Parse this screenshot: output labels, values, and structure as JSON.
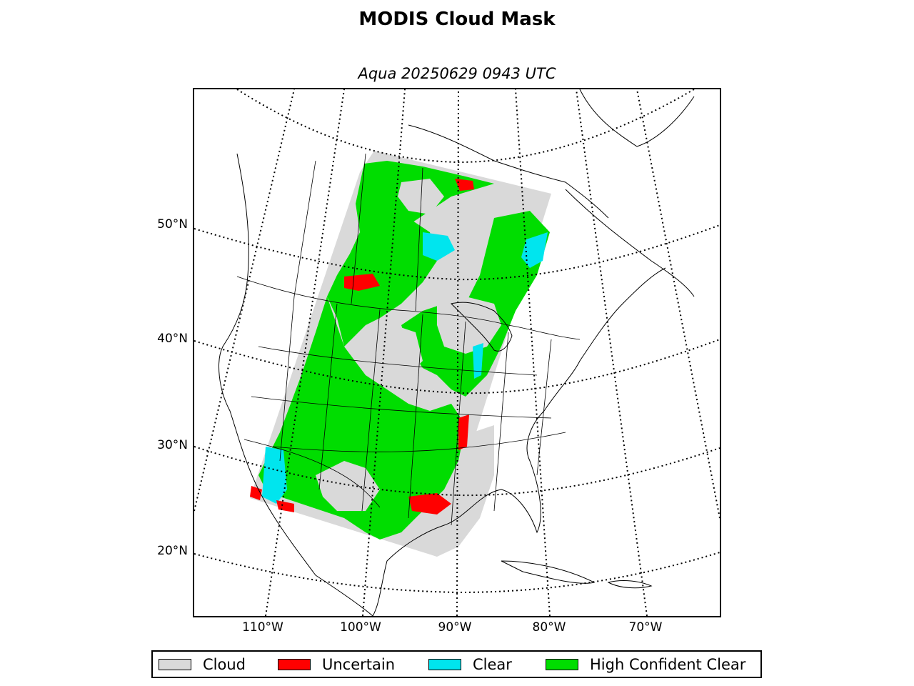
{
  "title": "MODIS Cloud Mask",
  "subtitle": "Aqua 20250629 0943 UTC",
  "latitude_labels": [
    "50°N",
    "40°N",
    "30°N",
    "20°N"
  ],
  "longitude_labels": [
    "110°W",
    "100°W",
    "90°W",
    "80°W",
    "70°W"
  ],
  "legend": [
    {
      "label": "Cloud",
      "color": "#d9d9d9"
    },
    {
      "label": "Uncertain",
      "color": "#ff0000"
    },
    {
      "label": "Clear",
      "color": "#00e5ee"
    },
    {
      "label": "High Confident Clear",
      "color": "#00dd00"
    }
  ],
  "colors": {
    "cloud": "#d9d9d9",
    "uncertain": "#ff0000",
    "clear": "#00e5ee",
    "high_confident_clear": "#00dd00",
    "coastline": "#000000",
    "graticule": "#000000"
  }
}
